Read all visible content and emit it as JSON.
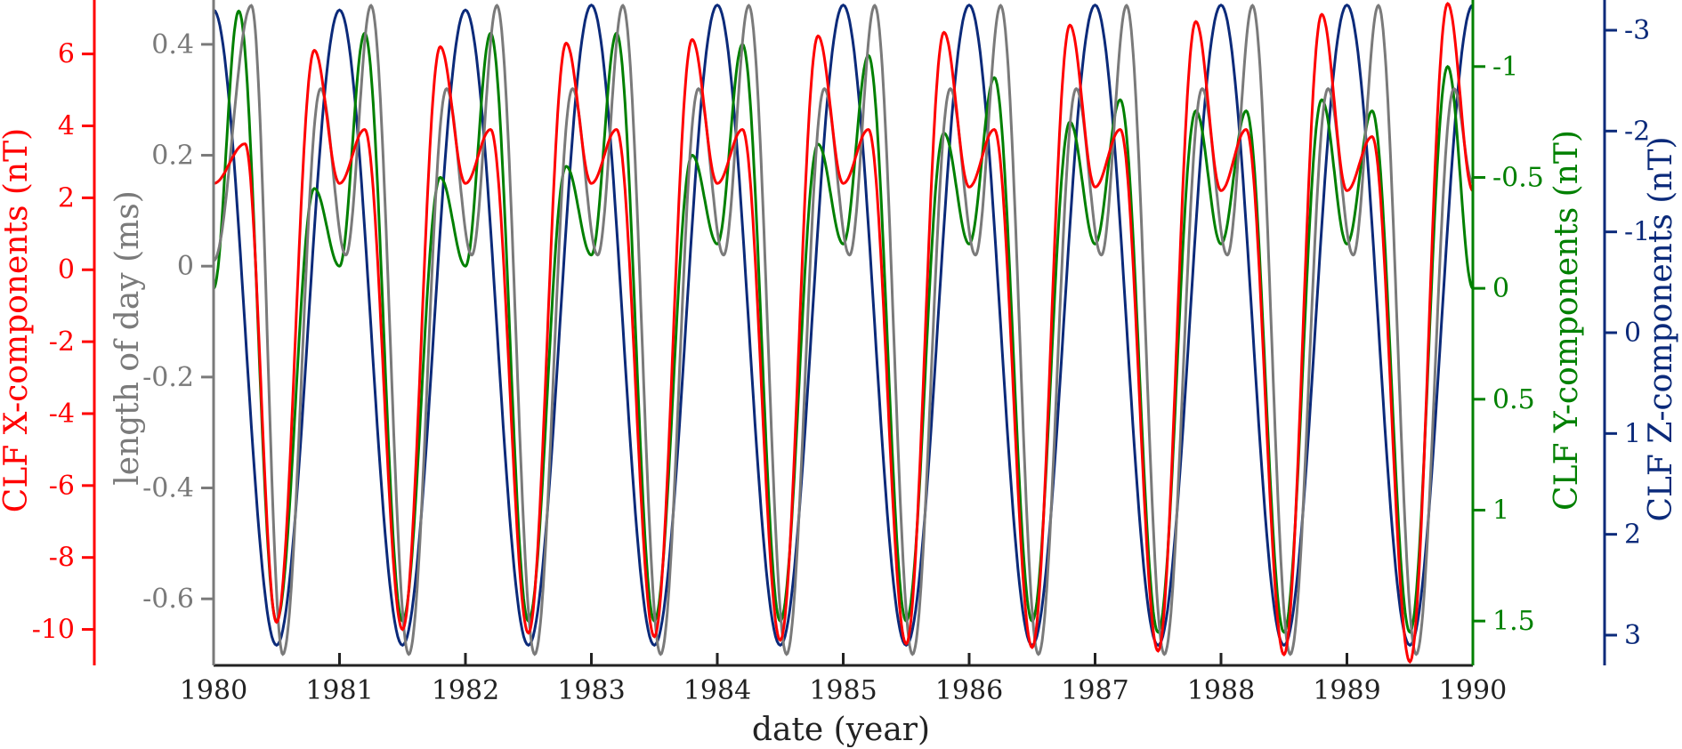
{
  "chart_data": {
    "type": "line",
    "xlabel": "date (year)",
    "xlim": [
      1980,
      1990
    ],
    "x_ticks": [
      1980,
      1981,
      1982,
      1983,
      1984,
      1985,
      1986,
      1987,
      1988,
      1989,
      1990
    ],
    "x_tick_labels": [
      "1980",
      "1981",
      "1982",
      "1983",
      "1984",
      "1985",
      "1986",
      "1987",
      "1988",
      "1989",
      "1990"
    ],
    "axes": {
      "x_comp": {
        "label": "CLF X-components (nT)",
        "color": "#ff0000",
        "ylim": [
          -11,
          7.5
        ],
        "ticks": [
          6,
          4,
          2,
          0,
          -2,
          -4,
          -6,
          -8,
          -10
        ],
        "tick_labels": [
          "6",
          "4",
          "2",
          "0",
          "-2",
          "-4",
          "-6",
          "-8",
          "-10"
        ]
      },
      "lod": {
        "label": "length of day (ms)",
        "color": "#7a7a7a",
        "ylim": [
          -0.72,
          0.48
        ],
        "ticks": [
          0.4,
          0.2,
          0,
          -0.2,
          -0.4,
          -0.6
        ],
        "tick_labels": [
          "0.4",
          "0.2",
          "0",
          "-0.2",
          "-0.4",
          "-0.6"
        ]
      },
      "y_comp": {
        "label": "CLF Y-components (nT)",
        "color": "#008000",
        "reversed": true,
        "ylim": [
          -1.3,
          1.7
        ],
        "ticks": [
          -1,
          -0.5,
          0,
          0.5,
          1,
          1.5
        ],
        "tick_labels": [
          "-1",
          "-0.5",
          "0",
          "0.5",
          "1",
          "1.5"
        ]
      },
      "z_comp": {
        "label": "CLF Z-components (nT)",
        "color": "#0b2a7a",
        "reversed": true,
        "ylim": [
          -3.3,
          3.3
        ],
        "ticks": [
          -3,
          -2,
          -1,
          0,
          1,
          2,
          3
        ],
        "tick_labels": [
          "-3",
          "-2",
          "-1",
          "0",
          "1",
          "2",
          "3"
        ]
      }
    },
    "series": [
      {
        "name": "CLF X-components",
        "axis": "x_comp",
        "color": "#ff0000",
        "x": [
          1980.0,
          1980.25,
          1980.5,
          1980.8,
          1981.0,
          1981.2,
          1981.5,
          1981.8,
          1982.0,
          1982.2,
          1982.5,
          1982.8,
          1983.0,
          1983.2,
          1983.5,
          1983.8,
          1984.0,
          1984.2,
          1984.5,
          1984.8,
          1985.0,
          1985.2,
          1985.5,
          1985.8,
          1986.0,
          1986.2,
          1986.5,
          1986.8,
          1987.0,
          1987.2,
          1987.5,
          1987.8,
          1988.0,
          1988.2,
          1988.5,
          1988.8,
          1989.0,
          1989.2,
          1989.5,
          1989.8,
          1990.0
        ],
        "values": [
          2.4,
          3.5,
          -9.8,
          6.1,
          2.4,
          3.9,
          -10.0,
          6.2,
          2.4,
          3.9,
          -10.1,
          6.3,
          2.4,
          3.9,
          -10.2,
          6.4,
          2.4,
          3.9,
          -10.3,
          6.5,
          2.4,
          3.9,
          -10.4,
          6.6,
          2.3,
          3.9,
          -10.5,
          6.8,
          2.3,
          3.9,
          -10.6,
          6.9,
          2.2,
          3.9,
          -10.7,
          7.1,
          2.2,
          3.7,
          -10.9,
          7.4,
          2.2
        ]
      },
      {
        "name": "length of day",
        "axis": "lod",
        "color": "#7a7a7a",
        "x": [
          1980.0,
          1980.3,
          1980.55,
          1980.85,
          1981.05,
          1981.25,
          1981.55,
          1981.85,
          1982.05,
          1982.25,
          1982.55,
          1982.85,
          1983.05,
          1983.25,
          1983.55,
          1983.85,
          1984.05,
          1984.25,
          1984.55,
          1984.85,
          1985.05,
          1985.25,
          1985.55,
          1985.85,
          1986.05,
          1986.25,
          1986.55,
          1986.85,
          1987.05,
          1987.25,
          1987.55,
          1987.85,
          1988.05,
          1988.25,
          1988.55,
          1988.85,
          1989.05,
          1989.25,
          1989.55,
          1989.85,
          1990.0
        ],
        "values": [
          0.01,
          0.47,
          -0.7,
          0.32,
          0.02,
          0.47,
          -0.7,
          0.32,
          0.02,
          0.47,
          -0.7,
          0.32,
          0.02,
          0.47,
          -0.7,
          0.32,
          0.02,
          0.47,
          -0.7,
          0.32,
          0.02,
          0.47,
          -0.7,
          0.32,
          0.02,
          0.47,
          -0.7,
          0.32,
          0.02,
          0.47,
          -0.7,
          0.32,
          0.02,
          0.47,
          -0.7,
          0.32,
          0.02,
          0.47,
          -0.7,
          0.32,
          0.15
        ]
      },
      {
        "name": "CLF Y-components",
        "axis": "y_comp",
        "color": "#008000",
        "x": [
          1980.0,
          1980.2,
          1980.5,
          1980.8,
          1981.0,
          1981.2,
          1981.5,
          1981.8,
          1982.0,
          1982.2,
          1982.5,
          1982.8,
          1983.0,
          1983.2,
          1983.5,
          1983.8,
          1984.0,
          1984.2,
          1984.5,
          1984.8,
          1985.0,
          1985.2,
          1985.5,
          1985.8,
          1986.0,
          1986.2,
          1986.5,
          1986.8,
          1987.0,
          1987.2,
          1987.5,
          1987.8,
          1988.0,
          1988.2,
          1988.5,
          1988.8,
          1989.0,
          1989.2,
          1989.5,
          1989.8,
          1990.0
        ],
        "values": [
          0.0,
          -1.25,
          1.5,
          -0.45,
          -0.1,
          -1.15,
          1.5,
          -0.5,
          -0.1,
          -1.15,
          1.5,
          -0.55,
          -0.15,
          -1.15,
          1.5,
          -0.6,
          -0.2,
          -1.1,
          1.5,
          -0.65,
          -0.2,
          -1.05,
          1.5,
          -0.7,
          -0.2,
          -0.95,
          1.5,
          -0.75,
          -0.2,
          -0.85,
          1.55,
          -0.8,
          -0.2,
          -0.8,
          1.55,
          -0.85,
          -0.2,
          -0.8,
          1.55,
          -1.0,
          0.0
        ]
      },
      {
        "name": "CLF Z-components",
        "axis": "z_comp",
        "color": "#0b2a7a",
        "x": [
          1980.0,
          1980.5,
          1981.0,
          1981.5,
          1982.0,
          1982.5,
          1983.0,
          1983.5,
          1984.0,
          1984.5,
          1985.0,
          1985.5,
          1986.0,
          1986.5,
          1987.0,
          1987.5,
          1988.0,
          1988.5,
          1989.0,
          1989.5,
          1990.0
        ],
        "values": [
          -3.2,
          3.1,
          -3.2,
          3.1,
          -3.2,
          3.1,
          -3.25,
          3.1,
          -3.25,
          3.1,
          -3.25,
          3.1,
          -3.25,
          3.1,
          -3.25,
          3.1,
          -3.25,
          3.1,
          -3.25,
          3.1,
          -3.25
        ]
      }
    ]
  }
}
